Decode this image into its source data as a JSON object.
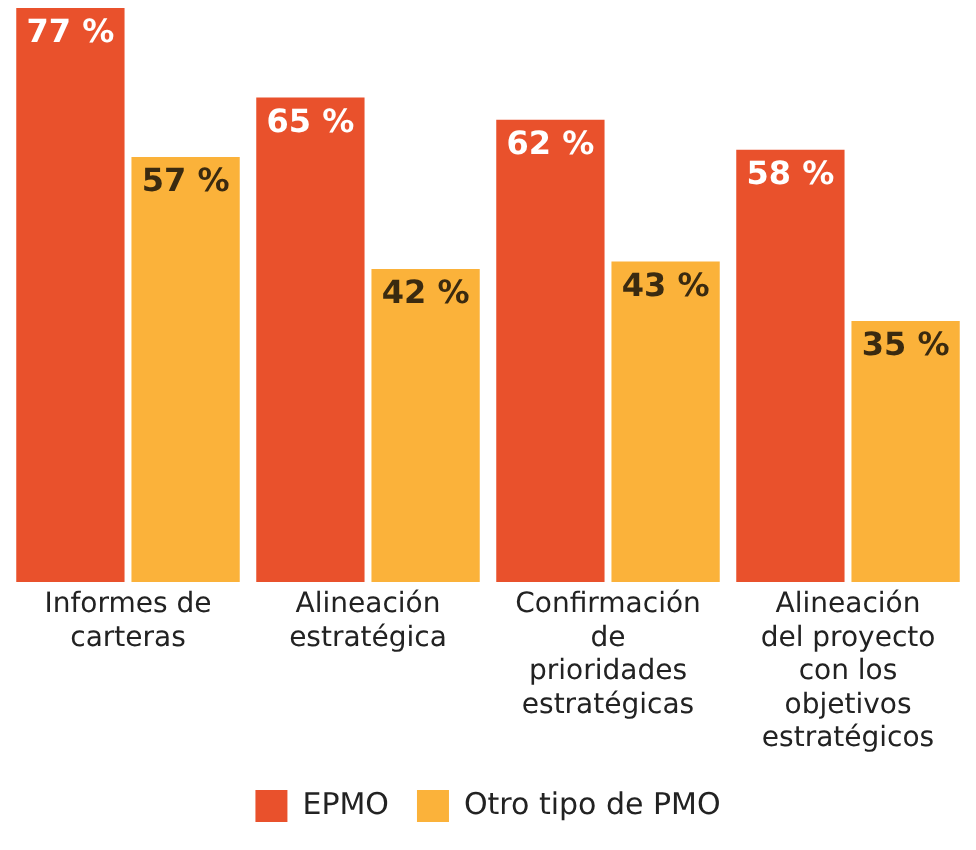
{
  "chart_data": {
    "type": "bar",
    "categories": [
      "Informes de carteras",
      "Alineación estratégica",
      "Confirmación de prioridades estratégicas",
      "Alineación del proyecto con los objetivos estratégicos"
    ],
    "series": [
      {
        "name": "EPMO",
        "color": "#e9512c",
        "values": [
          77,
          65,
          62,
          58
        ],
        "value_labels": [
          "77 %",
          "65 %",
          "62 %",
          "58 %"
        ]
      },
      {
        "name": "Otro tipo de PMO",
        "color": "#fbb23a",
        "values": [
          57,
          42,
          43,
          35
        ],
        "value_labels": [
          "57 %",
          "42 %",
          "43 %",
          "35 %"
        ]
      }
    ],
    "legend": "bottom",
    "grid": false,
    "tick_labels": "x"
  }
}
